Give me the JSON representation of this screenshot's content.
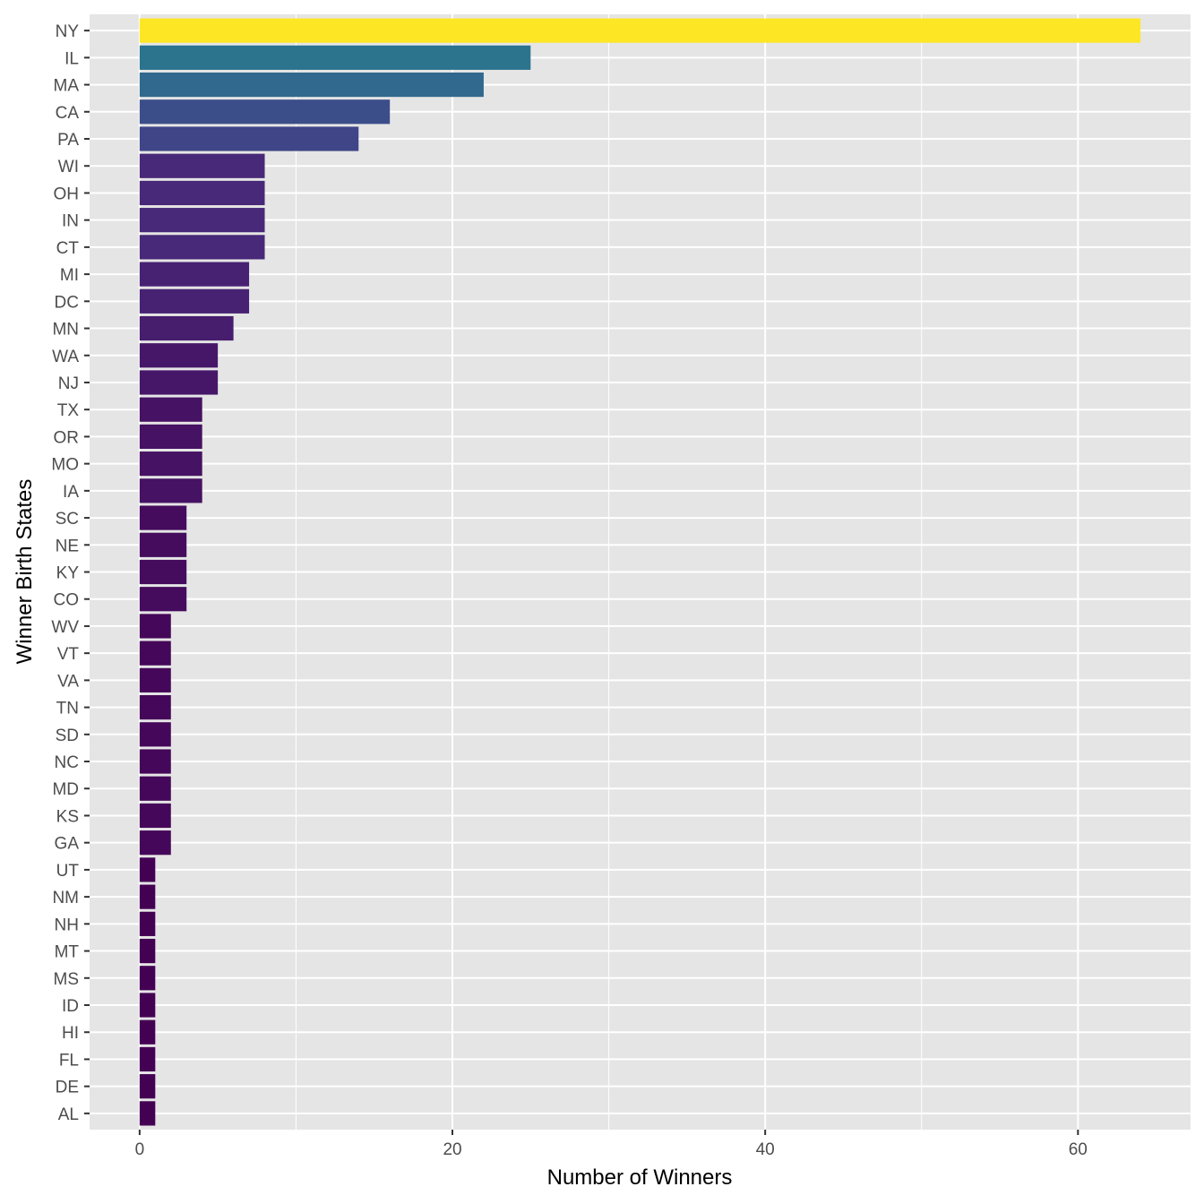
{
  "chart_data": {
    "type": "bar",
    "orientation": "horizontal",
    "title": "",
    "xlabel": "Number of Winners",
    "ylabel": "Winner Birth States",
    "xlim": [
      -3.2,
      67.2
    ],
    "xticks": [
      0,
      20,
      40,
      60
    ],
    "grid": true,
    "legend": "none",
    "fill_scale": "viridis (by value)",
    "panel_background": "#e5e5e5",
    "categories": [
      "NY",
      "IL",
      "MA",
      "CA",
      "PA",
      "WI",
      "OH",
      "IN",
      "CT",
      "MI",
      "DC",
      "MN",
      "WA",
      "NJ",
      "TX",
      "OR",
      "MO",
      "IA",
      "SC",
      "NE",
      "KY",
      "CO",
      "WV",
      "VT",
      "VA",
      "TN",
      "SD",
      "NC",
      "MD",
      "KS",
      "GA",
      "UT",
      "NM",
      "NH",
      "MT",
      "MS",
      "ID",
      "HI",
      "FL",
      "DE",
      "AL"
    ],
    "values": [
      64,
      25,
      22,
      16,
      14,
      8,
      8,
      8,
      8,
      7,
      7,
      6,
      5,
      5,
      4,
      4,
      4,
      4,
      3,
      3,
      3,
      3,
      2,
      2,
      2,
      2,
      2,
      2,
      2,
      2,
      2,
      1,
      1,
      1,
      1,
      1,
      1,
      1,
      1,
      1,
      1
    ]
  }
}
